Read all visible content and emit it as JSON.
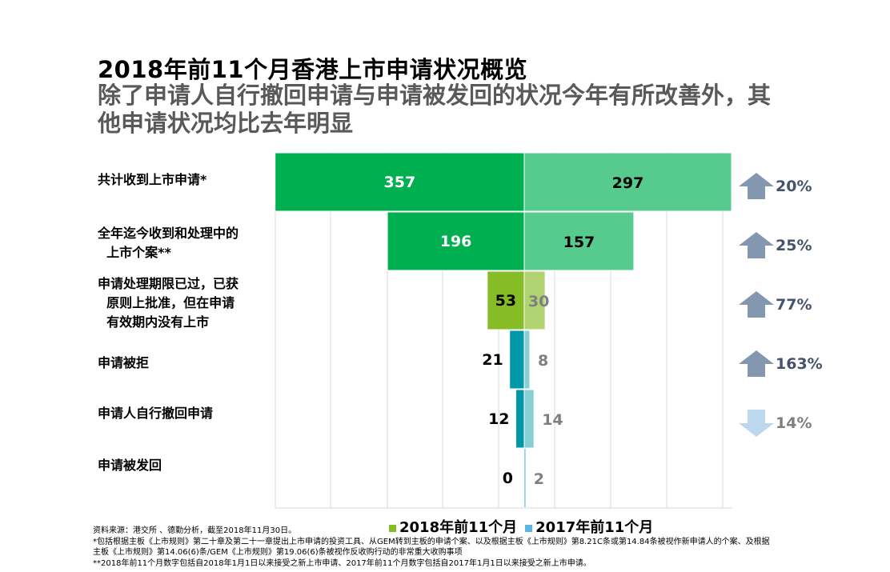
{
  "title": "2018年前11个月香港上市申请状况概览",
  "subtitle": "除了申请人自行撤回申请与申请被发回的状况今年有所改善外，其他申请状况均比去年明显",
  "chart_data": {
    "type": "bar",
    "orientation": "horizontal-butterfly",
    "categories": [
      "共计收到上市申请*",
      "全年迄今收到和处理中的\n  上市个案**",
      "申请处理期限已过，已获\n  原则上批准，但在申请\n  有效期内没有上市",
      "申请被拒",
      "申请人自行撤回申请",
      "申请被发回"
    ],
    "series": [
      {
        "name": "2018年前11个月",
        "values": [
          357,
          196,
          53,
          21,
          12,
          0
        ]
      },
      {
        "name": "2017年前11个月",
        "values": [
          297,
          157,
          30,
          8,
          14,
          2
        ]
      }
    ],
    "changes": [
      {
        "label": "20%",
        "direction": "up"
      },
      {
        "label": "25%",
        "direction": "up"
      },
      {
        "label": "77%",
        "direction": "up"
      },
      {
        "label": "163%",
        "direction": "up"
      },
      {
        "label": "14%",
        "direction": "down"
      }
    ],
    "grid": true,
    "legend": "bottom",
    "colors": {
      "left": [
        "#00AF50",
        "#00AF50",
        "#86BC25",
        "#0097A9",
        "#0097A9",
        "#0097A9"
      ],
      "right": [
        "#4DC987",
        "#4DC987",
        "#AED16B",
        "#7FCDD3",
        "#7FCDD3",
        "#8DCFEF"
      ],
      "arrow_up": "#8497B0",
      "arrow_down": "#BDD7EE",
      "legend_2018": "#86BC25",
      "legend_2017": "#5BB5E0"
    }
  },
  "notes": [
    "资料来源：港交所 、德勤分析，截至2018年11月30日。",
    "*包括根据主板《上市规则》第二十章及第二十一章提出上市申请的投资工具、从GEM转到主板的申请个案、以及根据主板《上市规则》第8.21C条或第14.84条被视作新申请人的个案、及根据主板《上市规则》第14.06(6)条/GEM《上市规则》第19.06(6)条被视作反收购行动的非常重大收购事项",
    "**2018年前11个月数字包括自2018年1月1日以来接受之新上市申请、2017年前11个月数字包括自2017年1月1日以来接受之新上市申请。"
  ]
}
